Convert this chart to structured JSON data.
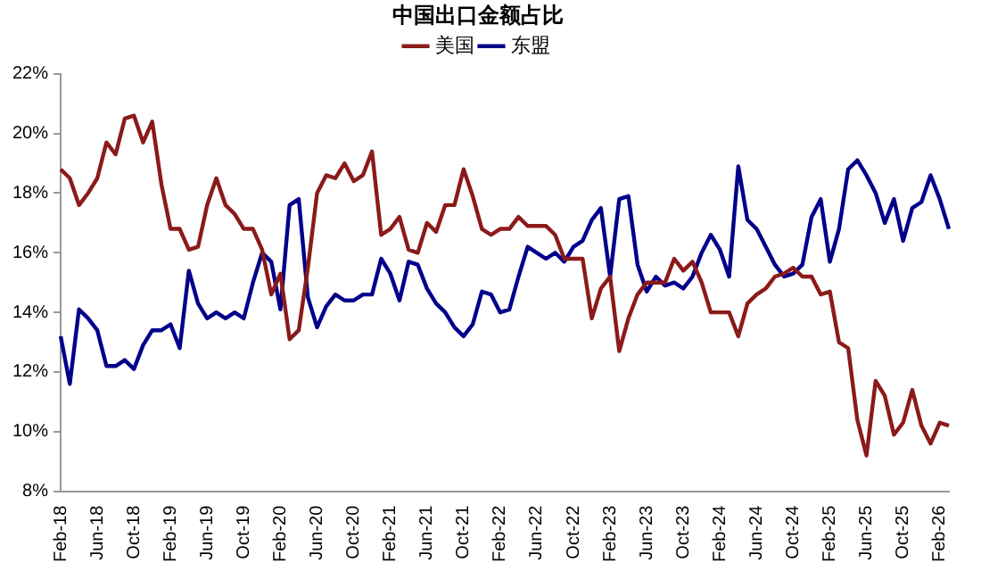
{
  "chart_data": {
    "type": "line",
    "title": "中国出口金额占比",
    "categories": [
      "Feb-18",
      null,
      null,
      null,
      "Jun-18",
      null,
      null,
      null,
      "Oct-18",
      null,
      null,
      null,
      "Feb-19",
      null,
      null,
      null,
      "Jun-19",
      null,
      null,
      null,
      "Oct-19",
      null,
      null,
      null,
      "Feb-20",
      null,
      null,
      null,
      "Jun-20",
      null,
      null,
      null,
      "Oct-20",
      null,
      null,
      null,
      "Feb-21",
      null,
      null,
      null,
      "Jun-21",
      null,
      null,
      null,
      "Oct-21",
      null,
      null,
      null,
      "Feb-22",
      null,
      null,
      null,
      "Jun-22",
      null,
      null,
      null,
      "Oct-22",
      null,
      null,
      null,
      "Feb-23",
      null,
      null,
      null,
      "Jun-23",
      null,
      null,
      null,
      "Oct-23",
      null,
      null,
      null,
      "Feb-24",
      null,
      null,
      null,
      "Jun-24",
      null,
      null,
      null,
      "Oct-24",
      null,
      null,
      null,
      "Feb-25",
      null,
      null,
      null,
      "Jun-25",
      null,
      null,
      null,
      "Oct-25",
      null,
      null,
      null,
      "Feb-26",
      null
    ],
    "series": [
      {
        "name": "美国",
        "color": "#8b1a1a",
        "values": [
          18.8,
          18.5,
          17.6,
          18.0,
          18.5,
          19.7,
          19.3,
          20.5,
          20.6,
          19.7,
          20.4,
          18.3,
          16.8,
          16.8,
          16.1,
          16.2,
          17.6,
          18.5,
          17.6,
          17.3,
          16.8,
          16.8,
          16.1,
          14.6,
          15.3,
          13.1,
          13.4,
          15.5,
          18.0,
          18.6,
          18.5,
          19.0,
          18.4,
          18.6,
          19.4,
          16.6,
          16.8,
          17.2,
          16.1,
          16.0,
          17.0,
          16.7,
          17.6,
          17.6,
          18.8,
          17.9,
          16.8,
          16.6,
          16.8,
          16.8,
          17.2,
          16.9,
          16.9,
          16.9,
          16.6,
          15.8,
          15.8,
          15.8,
          13.8,
          14.8,
          15.2,
          12.7,
          13.8,
          14.6,
          15.0,
          15.0,
          15.0,
          15.8,
          15.4,
          15.7,
          15.0,
          14.0,
          14.0,
          14.0,
          13.2,
          14.3,
          14.6,
          14.8,
          15.2,
          15.3,
          15.5,
          15.2,
          15.2,
          14.6,
          14.7,
          13.0,
          12.8,
          10.4,
          9.2,
          11.7,
          11.2,
          9.9,
          10.3,
          11.4,
          10.2,
          9.6,
          10.3,
          10.2
        ]
      },
      {
        "name": "东盟",
        "color": "#00008b",
        "values": [
          13.2,
          11.6,
          14.1,
          13.8,
          13.4,
          12.2,
          12.2,
          12.4,
          12.1,
          12.9,
          13.4,
          13.4,
          13.6,
          12.8,
          15.4,
          14.3,
          13.8,
          14.0,
          13.8,
          14.0,
          13.8,
          15.0,
          16.0,
          15.7,
          14.1,
          17.6,
          17.8,
          14.5,
          13.5,
          14.2,
          14.6,
          14.4,
          14.4,
          14.6,
          14.6,
          15.8,
          15.3,
          14.4,
          15.7,
          15.6,
          14.8,
          14.3,
          14.0,
          13.5,
          13.2,
          13.6,
          14.7,
          14.6,
          14.0,
          14.1,
          15.2,
          16.2,
          16.0,
          15.8,
          16.0,
          15.7,
          16.2,
          16.4,
          17.1,
          17.5,
          15.2,
          17.8,
          17.9,
          15.6,
          14.7,
          15.2,
          14.9,
          15.0,
          14.8,
          15.2,
          16.0,
          16.6,
          16.1,
          15.2,
          18.9,
          17.1,
          16.8,
          16.2,
          15.6,
          15.2,
          15.3,
          15.6,
          17.2,
          17.8,
          15.7,
          16.8,
          18.8,
          19.1,
          18.6,
          18.0,
          17.0,
          17.8,
          16.4,
          17.5,
          17.7,
          18.6,
          17.8,
          16.8
        ]
      }
    ],
    "ylim": [
      8,
      22
    ],
    "yticks": [
      {
        "value": 8,
        "label": "8%"
      },
      {
        "value": 10,
        "label": "10%"
      },
      {
        "value": 12,
        "label": "12%"
      },
      {
        "value": 14,
        "label": "14%"
      },
      {
        "value": 16,
        "label": "16%"
      },
      {
        "value": 18,
        "label": "18%"
      },
      {
        "value": 20,
        "label": "20%"
      },
      {
        "value": 22,
        "label": "22%"
      }
    ],
    "grid": false,
    "legend": "top",
    "marker": "none",
    "line_style": "solid"
  }
}
